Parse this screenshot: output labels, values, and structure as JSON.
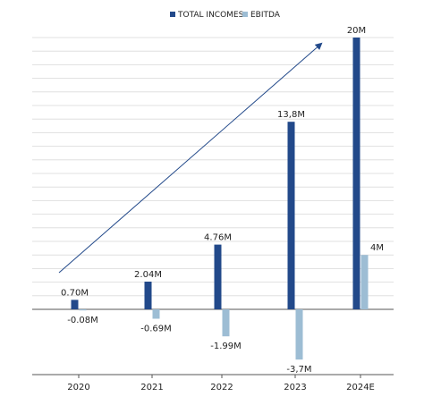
{
  "chart_data": {
    "type": "bar",
    "categories": [
      "2020",
      "2021",
      "2022",
      "2023",
      "2024E"
    ],
    "series": [
      {
        "name": "TOTAL INCOMES",
        "color": "#22498a",
        "values": [
          0.7,
          2.04,
          4.76,
          13.8,
          20
        ],
        "labels": [
          "0.70M",
          "2.04M",
          "4.76M",
          "13,8M",
          "20M"
        ]
      },
      {
        "name": "EBITDA",
        "color": "#9dbdd4",
        "values": [
          -0.08,
          -0.69,
          -1.99,
          -3.7,
          4
        ],
        "labels": [
          "-0.08M",
          "-0.69M",
          "-1.99M",
          "-3,7M",
          "4M"
        ]
      }
    ],
    "ylim": [
      -4.8,
      20.2
    ],
    "legend": "top-center",
    "grid": true,
    "annotation": "trend-arrow"
  }
}
